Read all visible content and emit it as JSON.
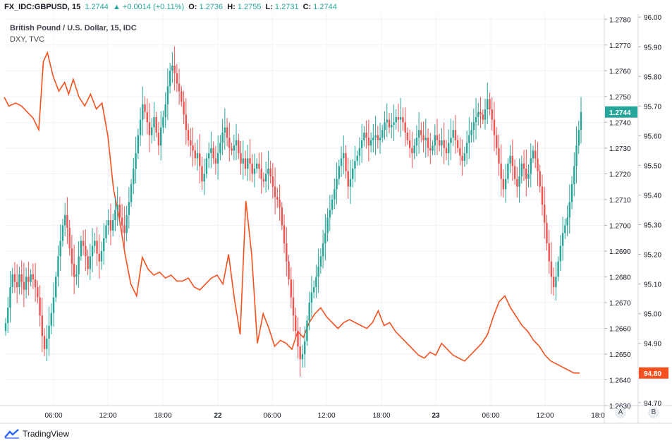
{
  "header": {
    "symbol": "FX_IDC:GBPUSD, 15",
    "last": "1.2744",
    "change": "▲ +0.0014 (+0.11%)",
    "open_label": "O:",
    "open": "1.2736",
    "high_label": "H:",
    "high": "1.2755",
    "low_label": "L:",
    "low": "1.2731",
    "close_label": "C:",
    "close": "1.2744"
  },
  "legend": {
    "line1": "British Pound / U.S. Dollar, 15, IDC",
    "line2": "DXY, TVC"
  },
  "axis_buttons": {
    "a": "A",
    "b": "B"
  },
  "footer": {
    "brand": "TradingView"
  },
  "colors": {
    "up": "#26a69a",
    "down": "#ef5350",
    "dxy": "#f4511e",
    "grid": "#f0f3fa",
    "axis": "#787b86"
  },
  "chart_data": {
    "type": "line",
    "x_ticks": [
      "06:00",
      "12:00",
      "18:00",
      "22",
      "06:00",
      "12:00",
      "18:00",
      "23",
      "06:00",
      "12:00",
      "18:0"
    ],
    "left_axis": {
      "series": "GBPUSD",
      "ticks": [
        "1.2780",
        "1.2770",
        "1.2760",
        "1.2750",
        "1.2740",
        "1.2730",
        "1.2720",
        "1.2710",
        "1.2700",
        "1.2690",
        "1.2680",
        "1.2670",
        "1.2660",
        "1.2650",
        "1.2640",
        "1.2630"
      ],
      "ylim": [
        1.263,
        1.2782
      ],
      "last_label": "1.2744"
    },
    "right_axis": {
      "series": "DXY",
      "ticks": [
        "96.00",
        "95.90",
        "95.80",
        "95.70",
        "95.60",
        "95.50",
        "95.40",
        "95.30",
        "95.20",
        "95.10",
        "95.00",
        "94.90",
        "94.80",
        "94.70"
      ],
      "ylim": [
        94.69,
        96.01
      ],
      "last_label": "94.80"
    },
    "series": [
      {
        "name": "GBPUSD",
        "kind": "candlestick",
        "close_path": [
          1.2662,
          1.2668,
          1.2676,
          1.2681,
          1.2678,
          1.2676,
          1.2681,
          1.2678,
          1.2675,
          1.268,
          1.2678,
          1.2681,
          1.2679,
          1.2676,
          1.2672,
          1.2665,
          1.2657,
          1.2652,
          1.2656,
          1.2661,
          1.2666,
          1.2672,
          1.268,
          1.2688,
          1.2694,
          1.27,
          1.2704,
          1.2699,
          1.2691,
          1.2685,
          1.268,
          1.2681,
          1.2688,
          1.2694,
          1.2692,
          1.2688,
          1.2683,
          1.2688,
          1.2692,
          1.2694,
          1.2689,
          1.2686,
          1.269,
          1.2695,
          1.27,
          1.2702,
          1.2698,
          1.2702,
          1.2706,
          1.2708,
          1.2703,
          1.27,
          1.2697,
          1.2704,
          1.2709,
          1.2716,
          1.2722,
          1.2728,
          1.2735,
          1.2741,
          1.2747,
          1.2744,
          1.274,
          1.2735,
          1.2738,
          1.2742,
          1.2736,
          1.2731,
          1.2738,
          1.2742,
          1.2747,
          1.2754,
          1.276,
          1.2762,
          1.2759,
          1.2755,
          1.2752,
          1.2748,
          1.2743,
          1.2737,
          1.2733,
          1.2731,
          1.2729,
          1.2726,
          1.2728,
          1.2723,
          1.2717,
          1.272,
          1.2726,
          1.2728,
          1.273,
          1.2726,
          1.2724,
          1.2728,
          1.2732,
          1.2736,
          1.2738,
          1.2734,
          1.273,
          1.2729,
          1.2731,
          1.2733,
          1.2728,
          1.2724,
          1.2726,
          1.2722,
          1.2726,
          1.2724,
          1.272,
          1.2722,
          1.2724,
          1.2722,
          1.2718,
          1.2717,
          1.272,
          1.2722,
          1.2719,
          1.2715,
          1.2711,
          1.271,
          1.2707,
          1.27,
          1.2693,
          1.2686,
          1.2679,
          1.2672,
          1.2665,
          1.2659,
          1.2653,
          1.2648,
          1.265,
          1.2655,
          1.2663,
          1.267,
          1.2674,
          1.2676,
          1.268,
          1.2684,
          1.2688,
          1.2693,
          1.2697,
          1.2703,
          1.2706,
          1.271,
          1.2714,
          1.2718,
          1.2723,
          1.2726,
          1.2728,
          1.2721,
          1.2715,
          1.2718,
          1.2722,
          1.2725,
          1.2727,
          1.273,
          1.2733,
          1.2736,
          1.2734,
          1.2731,
          1.2733,
          1.2734,
          1.2735,
          1.2733,
          1.2734,
          1.2737,
          1.274,
          1.2741,
          1.2738,
          1.2739,
          1.274,
          1.2742,
          1.2741,
          1.2742,
          1.274,
          1.2736,
          1.2733,
          1.273,
          1.2728,
          1.2731,
          1.2734,
          1.2737,
          1.2735,
          1.2733,
          1.2734,
          1.273,
          1.2729,
          1.2731,
          1.2735,
          1.2733,
          1.2731,
          1.2733,
          1.273,
          1.2728,
          1.2732,
          1.2734,
          1.2737,
          1.2733,
          1.273,
          1.2727,
          1.2725,
          1.2728,
          1.2732,
          1.2735,
          1.2737,
          1.274,
          1.2742,
          1.2744,
          1.2743,
          1.2741,
          1.2745,
          1.2749,
          1.2745,
          1.2741,
          1.2735,
          1.273,
          1.2724,
          1.2718,
          1.2714,
          1.2718,
          1.2724,
          1.2727,
          1.2723,
          1.2718,
          1.2715,
          1.2719,
          1.2724,
          1.2722,
          1.2718,
          1.272,
          1.2726,
          1.2729,
          1.2726,
          1.2721,
          1.2715,
          1.2708,
          1.2701,
          1.2693,
          1.2686,
          1.268,
          1.2676,
          1.268,
          1.2686,
          1.2692,
          1.2697,
          1.27,
          1.2703,
          1.2709,
          1.2716,
          1.2723,
          1.2731,
          1.2737,
          1.2744
        ]
      },
      {
        "name": "DXY",
        "kind": "line",
        "x_frac": [
          0,
          0.008,
          0.02,
          0.03,
          0.04,
          0.05,
          0.06,
          0.068,
          0.075,
          0.085,
          0.095,
          0.105,
          0.112,
          0.12,
          0.13,
          0.14,
          0.15,
          0.16,
          0.17,
          0.18,
          0.19,
          0.2,
          0.21,
          0.22,
          0.23,
          0.24,
          0.25,
          0.26,
          0.27,
          0.28,
          0.29,
          0.3,
          0.31,
          0.32,
          0.33,
          0.34,
          0.35,
          0.36,
          0.37,
          0.38,
          0.39,
          0.4,
          0.41,
          0.42,
          0.43,
          0.44,
          0.45,
          0.46,
          0.47,
          0.48,
          0.49,
          0.5,
          0.51,
          0.52,
          0.53,
          0.54,
          0.55,
          0.56,
          0.57,
          0.58,
          0.59,
          0.6,
          0.61,
          0.62,
          0.63,
          0.64,
          0.65,
          0.66,
          0.67,
          0.68,
          0.69,
          0.7,
          0.71,
          0.72,
          0.73,
          0.74,
          0.75,
          0.76,
          0.77,
          0.78,
          0.79,
          0.8,
          0.81,
          0.82,
          0.83,
          0.84,
          0.85,
          0.86,
          0.87,
          0.88,
          0.89,
          0.9,
          0.91,
          0.92,
          0.93,
          0.94,
          0.95,
          0.96,
          0.97,
          0.98,
          0.99,
          1.0
        ],
        "values": [
          95.73,
          95.7,
          95.71,
          95.7,
          95.68,
          95.66,
          95.62,
          95.85,
          95.88,
          95.8,
          95.75,
          95.78,
          95.74,
          95.79,
          95.73,
          95.7,
          95.74,
          95.69,
          95.71,
          95.6,
          95.42,
          95.32,
          95.2,
          95.1,
          95.06,
          95.19,
          95.15,
          95.13,
          95.14,
          95.12,
          95.13,
          95.11,
          95.11,
          95.12,
          95.09,
          95.08,
          95.1,
          95.12,
          95.13,
          95.1,
          95.2,
          95.05,
          94.93,
          95.38,
          95.2,
          94.9,
          95.0,
          94.95,
          94.89,
          94.91,
          94.9,
          94.88,
          94.94,
          94.92,
          94.97,
          95.0,
          95.02,
          94.99,
          94.97,
          94.95,
          94.97,
          94.98,
          94.97,
          94.96,
          94.95,
          94.97,
          95.01,
          94.96,
          94.97,
          94.94,
          94.92,
          94.9,
          94.88,
          94.86,
          94.85,
          94.87,
          94.86,
          94.9,
          94.88,
          94.86,
          94.85,
          94.84,
          94.86,
          94.88,
          94.9,
          94.93,
          94.99,
          95.04,
          95.06,
          95.02,
          94.99,
          94.96,
          94.94,
          94.91,
          94.89,
          94.86,
          94.84,
          94.83,
          94.82,
          94.81,
          94.8,
          94.8
        ]
      }
    ]
  }
}
